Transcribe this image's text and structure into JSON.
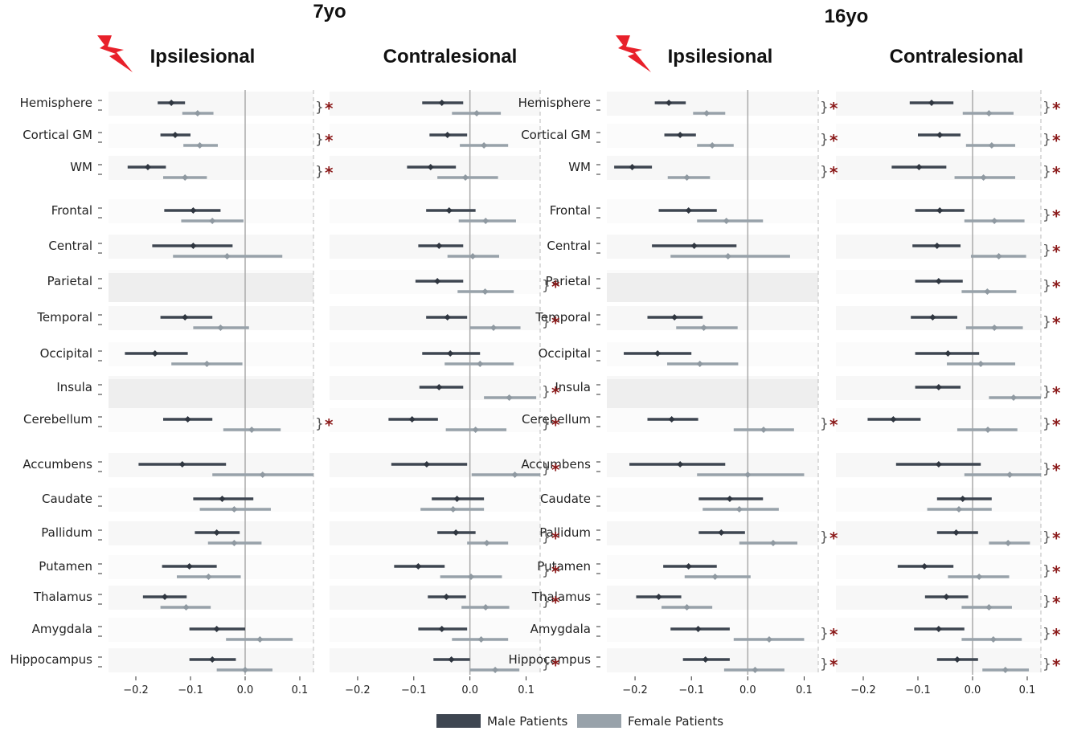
{
  "chart_data": {
    "type": "forest",
    "ages": [
      "7yo",
      "16yo"
    ],
    "panel_titles": {
      "ipsi": "Ipsilesional",
      "contra": "Contralesional"
    },
    "regions": [
      "Hemisphere",
      "Cortical GM",
      "WM",
      "Frontal",
      "Central",
      "Parietal",
      "Temporal",
      "Occipital",
      "Insula",
      "Cerebellum",
      "Accumbens",
      "Caudate",
      "Pallidum",
      "Putamen",
      "Thalamus",
      "Amygdala",
      "Hippocampus"
    ],
    "x_ticks": [
      -0.2,
      -0.1,
      0.0,
      0.1
    ],
    "x_tick_labels": [
      "−0.2",
      "−0.1",
      "0.0",
      "0.1"
    ],
    "xlim": [
      -0.25,
      0.125
    ],
    "legend": [
      {
        "label": "Male Patients",
        "color": "#3e4651"
      },
      {
        "label": "Female Patients",
        "color": "#98a2aa"
      }
    ],
    "colors": {
      "male": "#3e4651",
      "female": "#98a2aa",
      "star": "#8b1a1a",
      "zero": "#aaaaaa",
      "shade": "#eeeeee"
    },
    "significance_mark": "*",
    "brace_mark": "}",
    "panels": [
      {
        "age": "7yo",
        "side": "ipsi",
        "male": [
          [
            -0.135,
            -0.16,
            -0.11
          ],
          [
            -0.128,
            -0.155,
            -0.1
          ],
          [
            -0.178,
            -0.215,
            -0.145
          ],
          [
            -0.095,
            -0.148,
            -0.045
          ],
          [
            -0.095,
            -0.17,
            -0.023
          ],
          null,
          [
            -0.11,
            -0.155,
            -0.06
          ],
          [
            -0.165,
            -0.22,
            -0.105
          ],
          null,
          [
            -0.105,
            -0.15,
            -0.06
          ],
          [
            -0.115,
            -0.195,
            -0.035
          ],
          [
            -0.042,
            -0.095,
            0.015
          ],
          [
            -0.052,
            -0.092,
            -0.01
          ],
          [
            -0.102,
            -0.152,
            -0.052
          ],
          [
            -0.147,
            -0.187,
            -0.107
          ],
          [
            -0.052,
            -0.102,
            0.0
          ],
          [
            -0.06,
            -0.102,
            -0.017
          ]
        ],
        "female": [
          [
            -0.087,
            -0.115,
            -0.058
          ],
          [
            -0.083,
            -0.113,
            -0.05
          ],
          [
            -0.11,
            -0.15,
            -0.07
          ],
          [
            -0.06,
            -0.117,
            -0.003
          ],
          [
            -0.033,
            -0.132,
            0.068
          ],
          null,
          [
            -0.045,
            -0.095,
            0.007
          ],
          [
            -0.07,
            -0.135,
            -0.005
          ],
          null,
          [
            0.012,
            -0.04,
            0.065
          ],
          [
            0.032,
            -0.06,
            0.125
          ],
          [
            -0.02,
            -0.083,
            0.047
          ],
          [
            -0.02,
            -0.068,
            0.03
          ],
          [
            -0.067,
            -0.125,
            -0.008
          ],
          [
            -0.108,
            -0.155,
            -0.063
          ],
          [
            0.027,
            -0.035,
            0.087
          ],
          [
            0.0,
            -0.052,
            0.05
          ]
        ],
        "sig": [
          true,
          true,
          true,
          false,
          false,
          false,
          false,
          false,
          false,
          true,
          false,
          false,
          false,
          false,
          false,
          false,
          false
        ],
        "shaded": [
          5,
          8
        ]
      },
      {
        "age": "7yo",
        "side": "contra",
        "male": [
          [
            -0.05,
            -0.085,
            -0.012
          ],
          [
            -0.04,
            -0.072,
            -0.005
          ],
          [
            -0.07,
            -0.112,
            -0.025
          ],
          [
            -0.037,
            -0.078,
            0.01
          ],
          [
            -0.055,
            -0.092,
            -0.012
          ],
          [
            -0.058,
            -0.097,
            -0.012
          ],
          [
            -0.04,
            -0.078,
            -0.005
          ],
          [
            -0.035,
            -0.085,
            0.018
          ],
          [
            -0.055,
            -0.09,
            -0.012
          ],
          [
            -0.103,
            -0.145,
            -0.057
          ],
          [
            -0.077,
            -0.14,
            -0.005
          ],
          [
            -0.023,
            -0.068,
            0.025
          ],
          [
            -0.025,
            -0.058,
            0.01
          ],
          [
            -0.092,
            -0.135,
            -0.045
          ],
          [
            -0.042,
            -0.075,
            -0.007
          ],
          [
            -0.05,
            -0.092,
            -0.005
          ],
          [
            -0.033,
            -0.065,
            0.0
          ]
        ],
        "female": [
          [
            0.012,
            -0.032,
            0.055
          ],
          [
            0.025,
            -0.018,
            0.068
          ],
          [
            -0.008,
            -0.058,
            0.05
          ],
          [
            0.028,
            -0.02,
            0.082
          ],
          [
            0.005,
            -0.04,
            0.052
          ],
          [
            0.027,
            -0.022,
            0.078
          ],
          [
            0.042,
            0.0,
            0.09
          ],
          [
            0.018,
            -0.045,
            0.078
          ],
          [
            0.07,
            0.025,
            0.118
          ],
          [
            0.01,
            -0.043,
            0.065
          ],
          [
            0.08,
            0.003,
            0.125
          ],
          [
            -0.03,
            -0.088,
            0.025
          ],
          [
            0.03,
            -0.005,
            0.068
          ],
          [
            0.002,
            -0.053,
            0.057
          ],
          [
            0.028,
            -0.015,
            0.07
          ],
          [
            0.02,
            -0.032,
            0.068
          ],
          [
            0.045,
            0.0,
            0.088
          ]
        ],
        "sig": [
          false,
          false,
          false,
          false,
          false,
          true,
          true,
          false,
          true,
          true,
          true,
          false,
          true,
          true,
          true,
          false,
          true
        ],
        "shaded": []
      },
      {
        "age": "16yo",
        "side": "ipsi",
        "male": [
          [
            -0.14,
            -0.165,
            -0.11
          ],
          [
            -0.12,
            -0.148,
            -0.092
          ],
          [
            -0.205,
            -0.237,
            -0.17
          ],
          [
            -0.105,
            -0.158,
            -0.055
          ],
          [
            -0.095,
            -0.17,
            -0.02
          ],
          null,
          [
            -0.13,
            -0.178,
            -0.08
          ],
          [
            -0.16,
            -0.22,
            -0.1
          ],
          null,
          [
            -0.135,
            -0.178,
            -0.088
          ],
          [
            -0.12,
            -0.21,
            -0.04
          ],
          [
            -0.032,
            -0.087,
            0.027
          ],
          [
            -0.047,
            -0.087,
            -0.005
          ],
          [
            -0.105,
            -0.15,
            -0.055
          ],
          [
            -0.158,
            -0.198,
            -0.118
          ],
          [
            -0.088,
            -0.137,
            -0.032
          ],
          [
            -0.075,
            -0.115,
            -0.032
          ]
        ],
        "female": [
          [
            -0.073,
            -0.097,
            -0.04
          ],
          [
            -0.063,
            -0.09,
            -0.025
          ],
          [
            -0.108,
            -0.142,
            -0.067
          ],
          [
            -0.038,
            -0.09,
            0.027
          ],
          [
            -0.035,
            -0.137,
            0.075
          ],
          null,
          [
            -0.078,
            -0.127,
            -0.018
          ],
          [
            -0.085,
            -0.143,
            -0.017
          ],
          null,
          [
            0.028,
            -0.025,
            0.082
          ],
          [
            0.0,
            -0.09,
            0.1
          ],
          [
            -0.015,
            -0.08,
            0.055
          ],
          [
            0.045,
            -0.015,
            0.088
          ],
          [
            -0.058,
            -0.112,
            0.005
          ],
          [
            -0.108,
            -0.153,
            -0.063
          ],
          [
            0.038,
            -0.025,
            0.1
          ],
          [
            0.013,
            -0.042,
            0.065
          ]
        ],
        "sig": [
          true,
          true,
          true,
          false,
          false,
          false,
          false,
          false,
          false,
          true,
          false,
          false,
          true,
          false,
          false,
          true,
          true
        ],
        "shaded": [
          5,
          8
        ]
      },
      {
        "age": "16yo",
        "side": "contra",
        "male": [
          [
            -0.075,
            -0.115,
            -0.035
          ],
          [
            -0.06,
            -0.1,
            -0.022
          ],
          [
            -0.098,
            -0.148,
            -0.048
          ],
          [
            -0.06,
            -0.105,
            -0.015
          ],
          [
            -0.065,
            -0.11,
            -0.022
          ],
          [
            -0.062,
            -0.105,
            -0.018
          ],
          [
            -0.073,
            -0.113,
            -0.028
          ],
          [
            -0.045,
            -0.105,
            0.012
          ],
          [
            -0.062,
            -0.105,
            -0.022
          ],
          [
            -0.145,
            -0.192,
            -0.095
          ],
          [
            -0.062,
            -0.14,
            0.015
          ],
          [
            -0.018,
            -0.065,
            0.035
          ],
          [
            -0.03,
            -0.065,
            0.01
          ],
          [
            -0.088,
            -0.137,
            -0.035
          ],
          [
            -0.048,
            -0.087,
            -0.008
          ],
          [
            -0.062,
            -0.107,
            -0.015
          ],
          [
            -0.028,
            -0.065,
            0.01
          ]
        ],
        "female": [
          [
            0.03,
            -0.018,
            0.075
          ],
          [
            0.035,
            -0.012,
            0.078
          ],
          [
            0.02,
            -0.033,
            0.078
          ],
          [
            0.04,
            -0.015,
            0.095
          ],
          [
            0.048,
            -0.003,
            0.098
          ],
          [
            0.027,
            -0.02,
            0.08
          ],
          [
            0.04,
            -0.012,
            0.092
          ],
          [
            0.015,
            -0.047,
            0.078
          ],
          [
            0.075,
            0.03,
            0.125
          ],
          [
            0.028,
            -0.028,
            0.082
          ],
          [
            0.068,
            -0.015,
            0.125
          ],
          [
            -0.025,
            -0.083,
            0.035
          ],
          [
            0.065,
            0.03,
            0.105
          ],
          [
            0.012,
            -0.045,
            0.067
          ],
          [
            0.03,
            -0.02,
            0.072
          ],
          [
            0.038,
            -0.02,
            0.09
          ],
          [
            0.06,
            0.018,
            0.103
          ]
        ],
        "sig": [
          true,
          true,
          true,
          true,
          true,
          true,
          true,
          false,
          true,
          true,
          true,
          false,
          true,
          true,
          true,
          true,
          true
        ],
        "shaded": []
      }
    ]
  }
}
